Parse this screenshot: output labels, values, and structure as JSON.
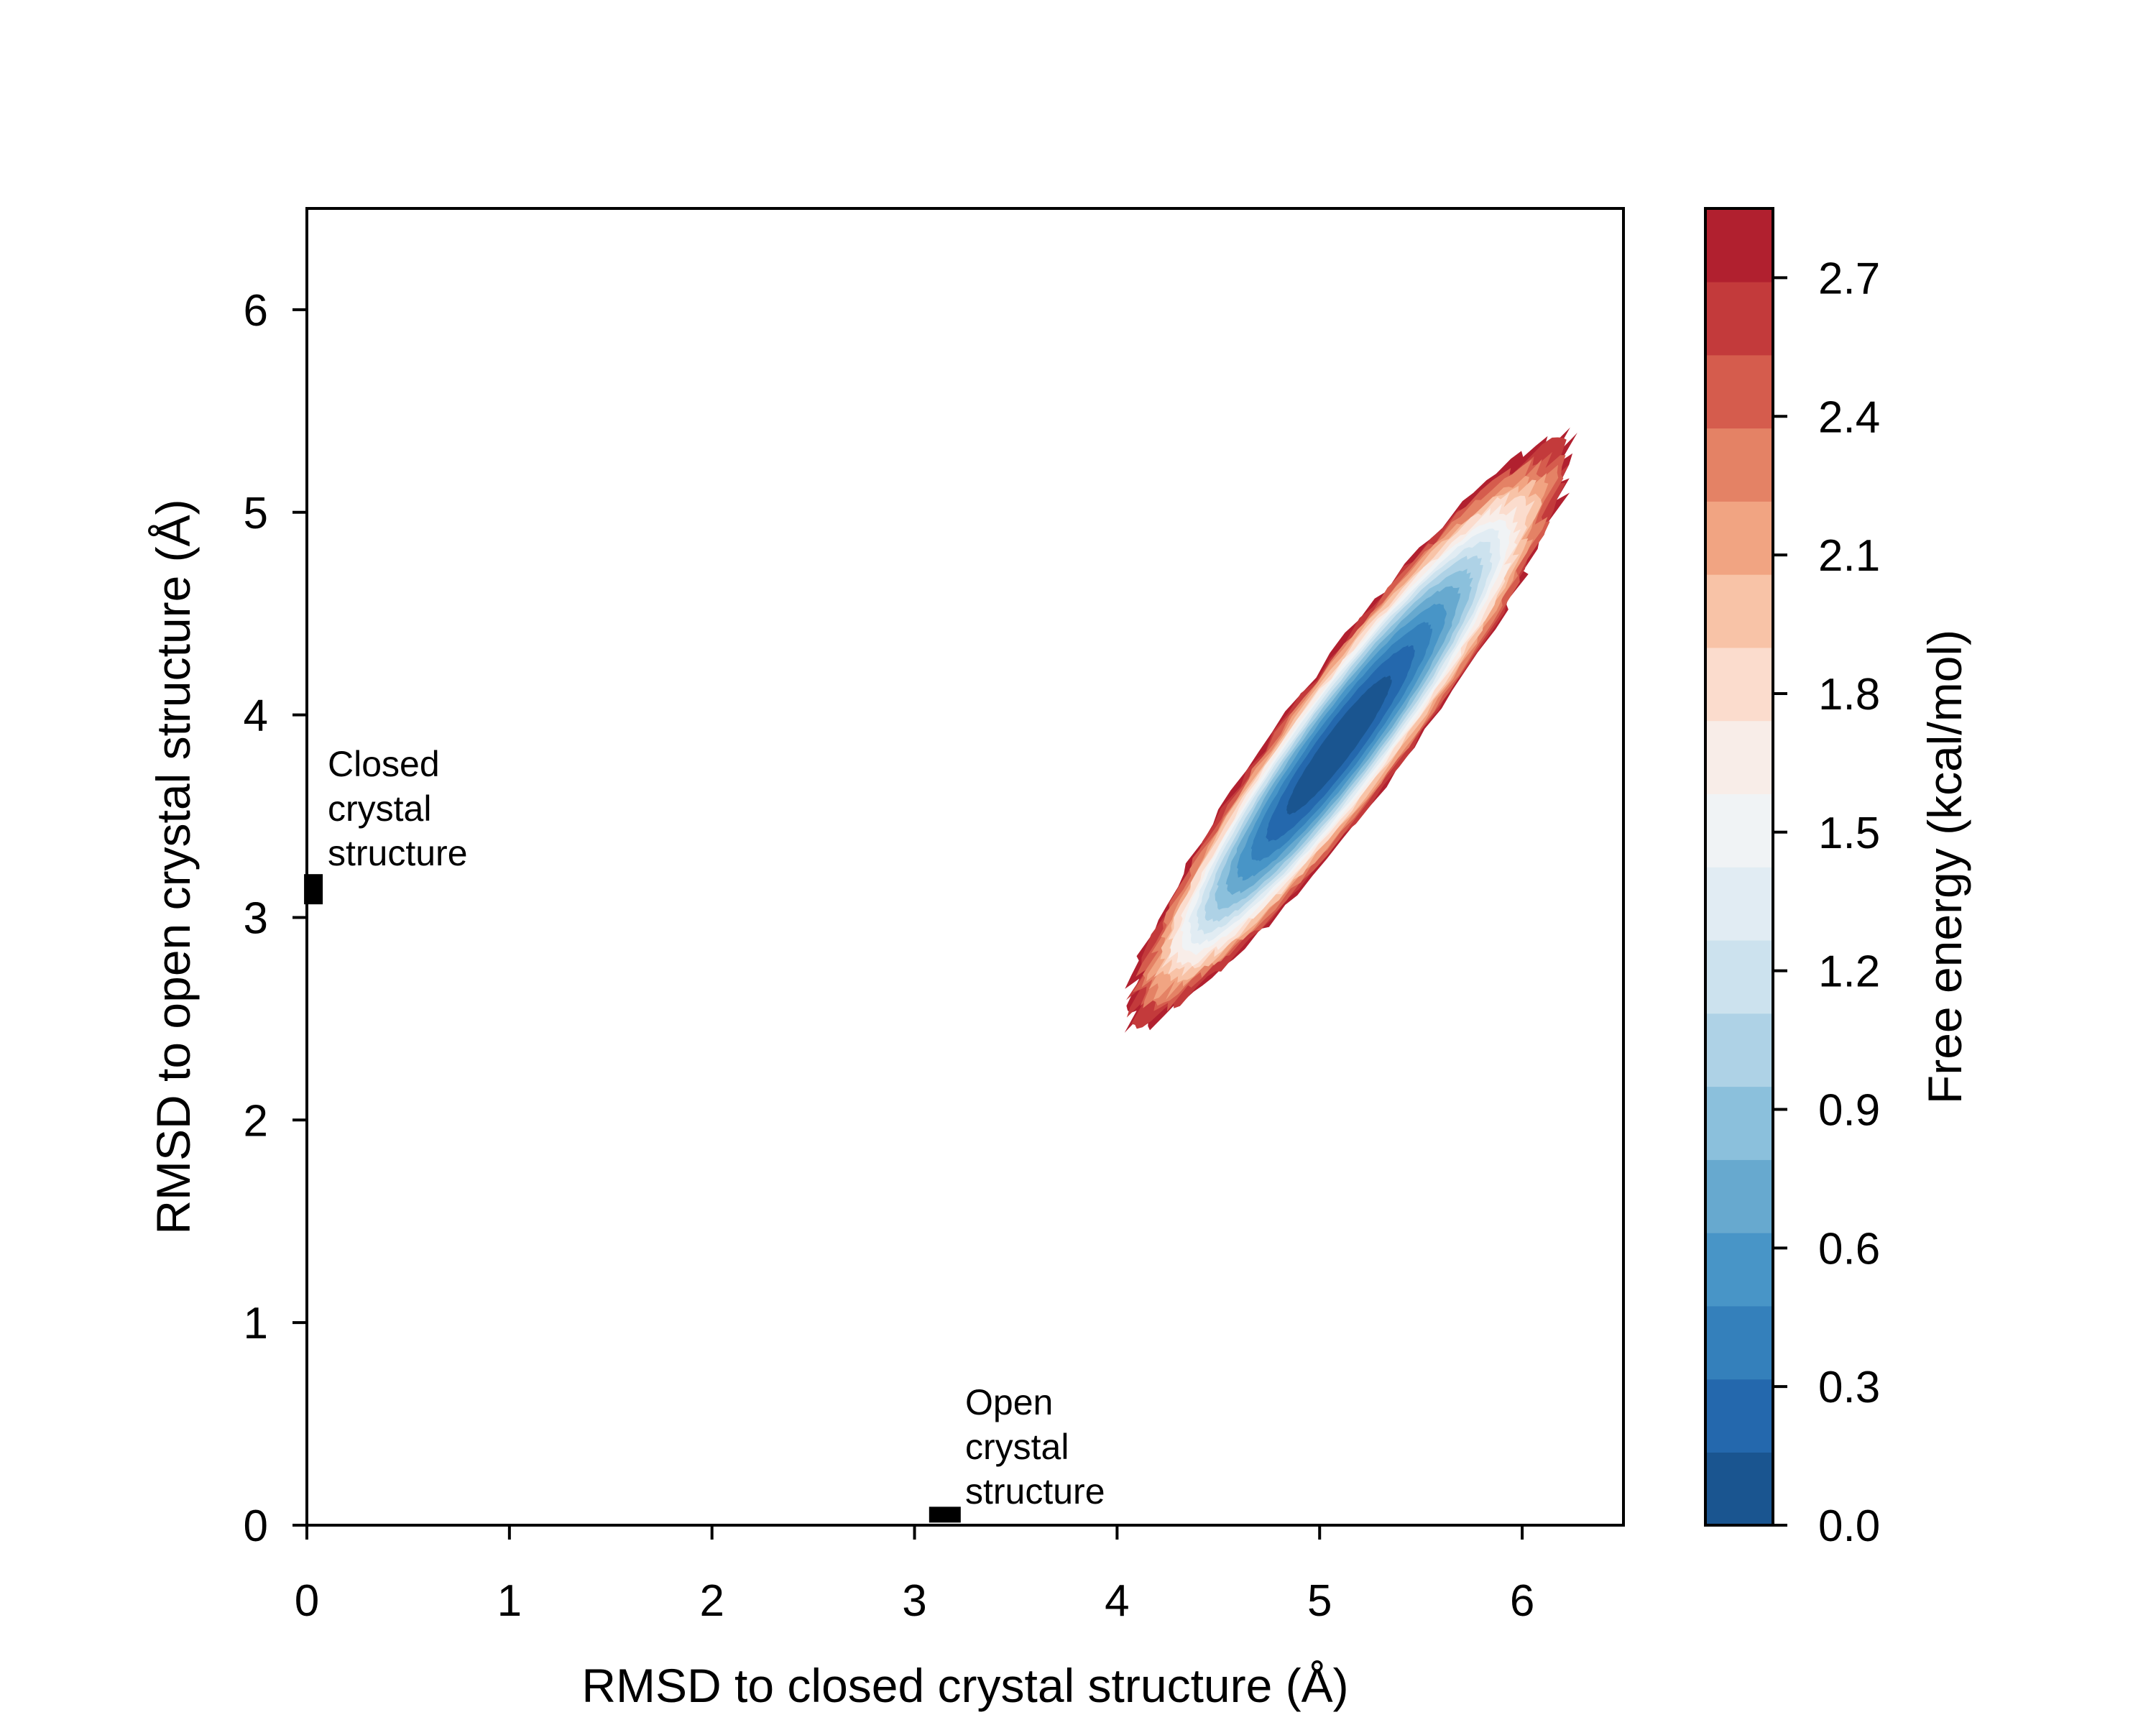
{
  "chart_data": {
    "type": "heatmap",
    "subtype": "filled-contour free energy landscape",
    "xlabel": "RMSD to closed crystal structure (Å)",
    "ylabel": "RMSD to open crystal structure (Å)",
    "xlim": [
      0,
      6.5
    ],
    "ylim": [
      0,
      6.5
    ],
    "x_ticks": [
      0,
      1,
      2,
      3,
      4,
      5,
      6
    ],
    "y_ticks": [
      0,
      1,
      2,
      3,
      4,
      5,
      6
    ],
    "x_tick_labels": [
      "0",
      "1",
      "2",
      "3",
      "4",
      "5",
      "6"
    ],
    "y_tick_labels": [
      "0",
      "1",
      "2",
      "3",
      "4",
      "5",
      "6"
    ],
    "grid": false,
    "colormap": "RdBu_r",
    "basin": {
      "description": "elongated diagonal basin",
      "center": [
        5.1,
        3.85
      ],
      "axis_start": [
        4.05,
        2.45
      ],
      "axis_end": [
        6.1,
        5.2
      ],
      "minimum_energy": 0.0,
      "edge_energy": 2.85
    },
    "markers": [
      {
        "name": "closed-crystal",
        "x": 0.05,
        "y": 3.15,
        "label_lines": [
          "Closed",
          "crystal",
          "structure"
        ]
      },
      {
        "name": "open-crystal",
        "x": 3.15,
        "y": 0.02,
        "label_lines": [
          "Open",
          "crystal",
          "structure"
        ]
      }
    ],
    "colorbar": {
      "label": "Free energy (kcal/mol)",
      "range": [
        0.0,
        2.85
      ],
      "ticks": [
        0.0,
        0.3,
        0.6,
        0.9,
        1.2,
        1.5,
        1.8,
        2.1,
        2.4,
        2.7
      ],
      "tick_labels": [
        "0.0",
        "0.3",
        "0.6",
        "0.9",
        "1.2",
        "1.5",
        "1.8",
        "2.1",
        "2.4",
        "2.7"
      ],
      "level_colors": [
        "#1a5590",
        "#2468ad",
        "#3480bb",
        "#4895c7",
        "#67a9cf",
        "#8bc0dc",
        "#aed2e6",
        "#cce2ee",
        "#e1ecf3",
        "#f0f3f5",
        "#f8ede8",
        "#fbdccd",
        "#f8c3a7",
        "#f1a482",
        "#e48265",
        "#d55c4d",
        "#c33a3b",
        "#b1202f"
      ]
    }
  }
}
